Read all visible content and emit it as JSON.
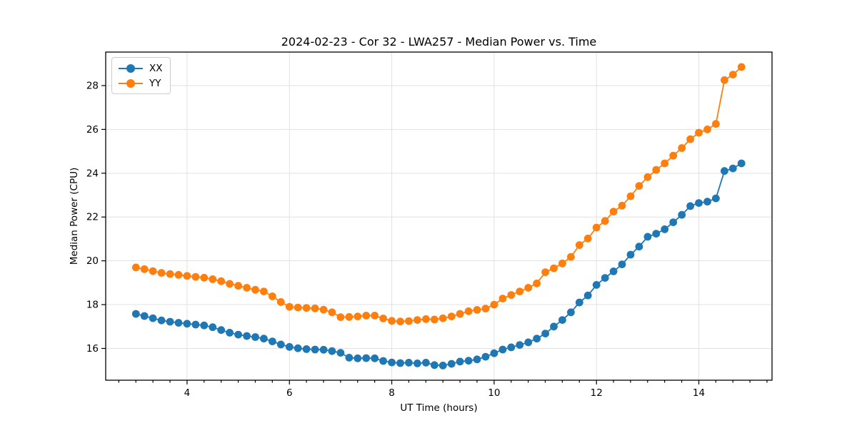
{
  "chart_data": {
    "type": "line",
    "title": "2024-02-23 - Cor 32 - LWA257 - Median Power vs. Time",
    "xlabel": "UT Time (hours)",
    "ylabel": "Median Power (CPU)",
    "xlim": [
      2.41,
      15.43
    ],
    "ylim": [
      14.55,
      29.53
    ],
    "xticks": [
      4,
      6,
      8,
      10,
      12,
      14
    ],
    "yticks": [
      16,
      18,
      20,
      22,
      24,
      26,
      28
    ],
    "x_minor_tick_step": 0.3333,
    "grid": true,
    "legend_position": "upper-left",
    "marker": "o",
    "background": "#ffffff",
    "grid_color": "#e1e1e1",
    "x": [
      3.0,
      3.167,
      3.333,
      3.5,
      3.667,
      3.833,
      4.0,
      4.167,
      4.333,
      4.5,
      4.667,
      4.833,
      5.0,
      5.167,
      5.333,
      5.5,
      5.667,
      5.833,
      6.0,
      6.167,
      6.333,
      6.5,
      6.667,
      6.833,
      7.0,
      7.167,
      7.333,
      7.5,
      7.667,
      7.833,
      8.0,
      8.167,
      8.333,
      8.5,
      8.667,
      8.833,
      9.0,
      9.167,
      9.333,
      9.5,
      9.667,
      9.833,
      10.0,
      10.167,
      10.333,
      10.5,
      10.667,
      10.833,
      11.0,
      11.167,
      11.333,
      11.5,
      11.667,
      11.833,
      12.0,
      12.167,
      12.333,
      12.5,
      12.667,
      12.833,
      13.0,
      13.167,
      13.333,
      13.5,
      13.667,
      13.833,
      14.0,
      14.167,
      14.333,
      14.5,
      14.667,
      14.833
    ],
    "series": [
      {
        "name": "XX",
        "color": "#1f77b4",
        "values": [
          17.58,
          17.48,
          17.38,
          17.28,
          17.22,
          17.17,
          17.13,
          17.09,
          17.05,
          16.97,
          16.84,
          16.72,
          16.63,
          16.57,
          16.52,
          16.45,
          16.32,
          16.18,
          16.07,
          16.01,
          15.97,
          15.95,
          15.94,
          15.88,
          15.8,
          15.58,
          15.55,
          15.56,
          15.55,
          15.43,
          15.36,
          15.33,
          15.35,
          15.32,
          15.35,
          15.24,
          15.22,
          15.3,
          15.4,
          15.44,
          15.5,
          15.62,
          15.78,
          15.95,
          16.05,
          16.16,
          16.28,
          16.45,
          16.68,
          17.0,
          17.3,
          17.65,
          18.1,
          18.42,
          18.9,
          19.22,
          19.52,
          19.84,
          20.28,
          20.65,
          21.1,
          21.24,
          21.44,
          21.76,
          22.1,
          22.5,
          22.64,
          22.7,
          22.85,
          24.1,
          24.22,
          24.45
        ]
      },
      {
        "name": "YY",
        "color": "#ff7f0e",
        "values": [
          19.7,
          19.62,
          19.53,
          19.45,
          19.4,
          19.36,
          19.31,
          19.27,
          19.23,
          19.16,
          19.07,
          18.95,
          18.86,
          18.77,
          18.68,
          18.6,
          18.38,
          18.12,
          17.9,
          17.87,
          17.85,
          17.83,
          17.77,
          17.65,
          17.43,
          17.44,
          17.46,
          17.5,
          17.5,
          17.37,
          17.26,
          17.23,
          17.25,
          17.3,
          17.34,
          17.32,
          17.38,
          17.46,
          17.58,
          17.7,
          17.76,
          17.82,
          18.0,
          18.28,
          18.44,
          18.6,
          18.77,
          18.97,
          19.48,
          19.66,
          19.88,
          20.18,
          20.72,
          21.02,
          21.52,
          21.82,
          22.25,
          22.52,
          22.95,
          23.42,
          23.82,
          24.15,
          24.45,
          24.8,
          25.15,
          25.55,
          25.85,
          26.0,
          26.25,
          28.25,
          28.5,
          28.85
        ]
      }
    ]
  }
}
